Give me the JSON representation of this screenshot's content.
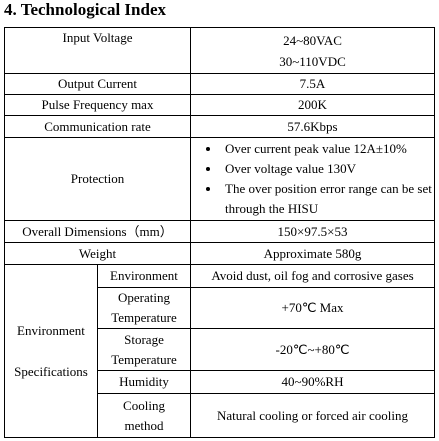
{
  "title": "4. Technological Index",
  "table": {
    "rows": [
      {
        "label": "Input Voltage",
        "values": [
          "24~80VAC",
          "30~110VDC"
        ]
      },
      {
        "label": "Output Current",
        "values": [
          "7.5A"
        ]
      },
      {
        "label": "Pulse Frequency max",
        "values": [
          "200K"
        ]
      },
      {
        "label": "Communication rate",
        "values": [
          "57.6Kbps"
        ]
      },
      {
        "label": "Protection",
        "values": [
          "Over current peak value 12A±10%",
          "Over voltage value 130V",
          "The over position error range can be set through the HISU"
        ]
      },
      {
        "label": "Overall Dimensions（mm）",
        "values": [
          "150×97.5×53"
        ]
      },
      {
        "label": "Weight",
        "values": [
          "Approximate 580g"
        ]
      }
    ],
    "environment": {
      "label": [
        "Environment",
        "Specifications"
      ],
      "rows": [
        {
          "label": "Environment",
          "value": "Avoid dust, oil fog and corrosive gases"
        },
        {
          "label": "Operating Temperature",
          "value": "+70℃ Max"
        },
        {
          "label": "Storage Temperature",
          "value": "-20℃~+80℃"
        },
        {
          "label": "Humidity",
          "value": "40~90%RH"
        },
        {
          "label": "Cooling method",
          "value": "Natural cooling or forced air cooling"
        }
      ]
    }
  }
}
